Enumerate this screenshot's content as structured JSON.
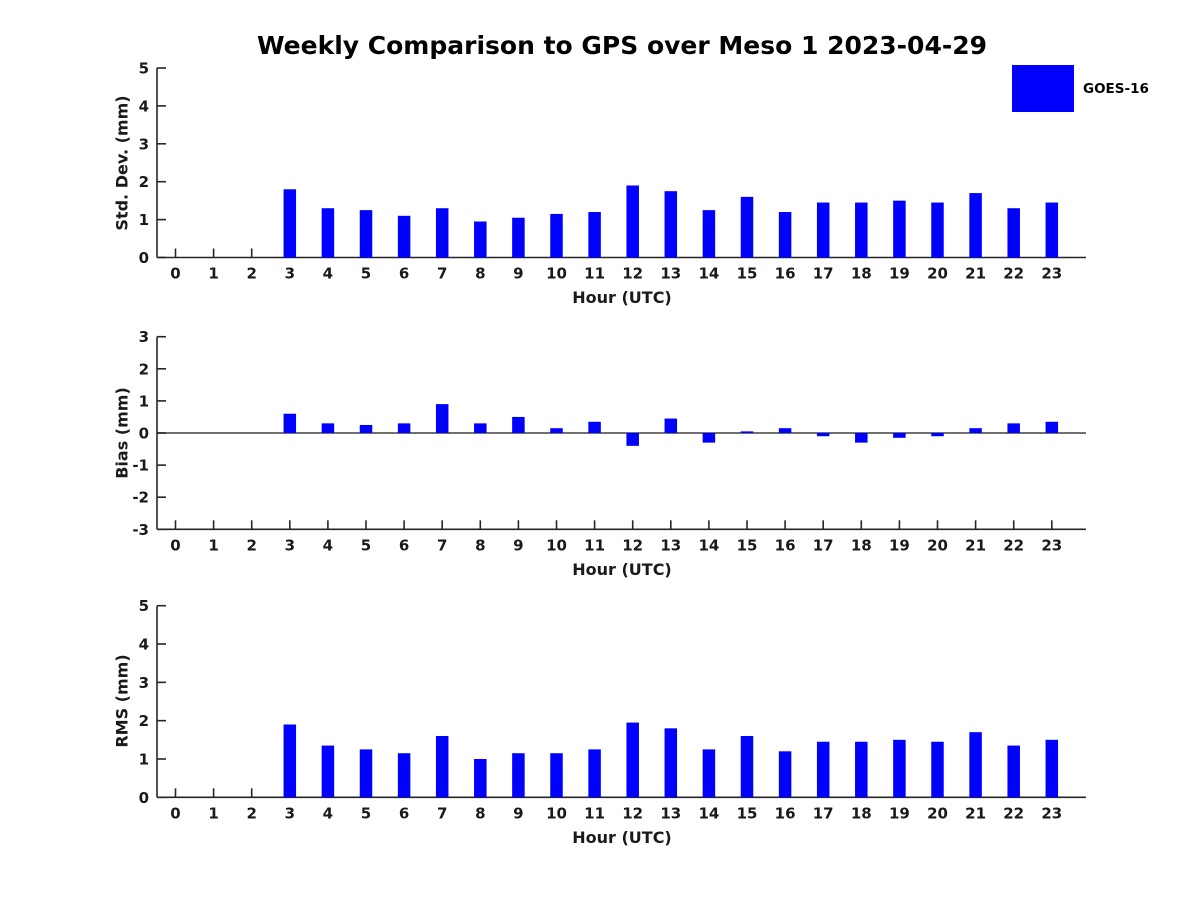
{
  "title": "Weekly Comparison to GPS over Meso 1 2023-04-29",
  "legend": {
    "label": "GOES-16",
    "color": "#0000ff",
    "position": "top-right"
  },
  "colors": {
    "bar": "#0000ff",
    "axis": "#262626",
    "text": "#1a1a1a",
    "background": "#ffffff"
  },
  "chart_data": [
    {
      "id": "std-dev",
      "type": "bar",
      "title": "",
      "ylabel": "Std. Dev. (mm)",
      "xlabel": "Hour (UTC)",
      "ylim": [
        0,
        5
      ],
      "yticks": [
        0,
        1,
        2,
        3,
        4,
        5
      ],
      "grid": false,
      "zero_line": false,
      "categories": [
        "0",
        "1",
        "2",
        "3",
        "4",
        "5",
        "6",
        "7",
        "8",
        "9",
        "10",
        "11",
        "12",
        "13",
        "14",
        "15",
        "16",
        "17",
        "18",
        "19",
        "20",
        "21",
        "22",
        "23"
      ],
      "values": [
        null,
        null,
        null,
        1.8,
        1.3,
        1.25,
        1.1,
        1.3,
        0.95,
        1.05,
        1.15,
        1.2,
        1.9,
        1.75,
        1.25,
        1.6,
        1.2,
        1.45,
        1.45,
        1.5,
        1.45,
        1.7,
        1.3,
        1.45
      ]
    },
    {
      "id": "bias",
      "type": "bar",
      "title": "",
      "ylabel": "Bias (mm)",
      "xlabel": "Hour (UTC)",
      "ylim": [
        -3,
        3
      ],
      "yticks": [
        -3,
        -2,
        -1,
        0,
        1,
        2,
        3
      ],
      "grid": false,
      "zero_line": true,
      "categories": [
        "0",
        "1",
        "2",
        "3",
        "4",
        "5",
        "6",
        "7",
        "8",
        "9",
        "10",
        "11",
        "12",
        "13",
        "14",
        "15",
        "16",
        "17",
        "18",
        "19",
        "20",
        "21",
        "22",
        "23"
      ],
      "values": [
        null,
        null,
        null,
        0.6,
        0.3,
        0.25,
        0.3,
        0.9,
        0.3,
        0.5,
        0.15,
        0.35,
        -0.4,
        0.45,
        -0.3,
        0.05,
        0.15,
        -0.1,
        -0.3,
        -0.15,
        -0.1,
        0.15,
        0.3,
        0.35
      ]
    },
    {
      "id": "rms",
      "type": "bar",
      "title": "",
      "ylabel": "RMS (mm)",
      "xlabel": "Hour (UTC)",
      "ylim": [
        0,
        5
      ],
      "yticks": [
        0,
        1,
        2,
        3,
        4,
        5
      ],
      "grid": false,
      "zero_line": false,
      "categories": [
        "0",
        "1",
        "2",
        "3",
        "4",
        "5",
        "6",
        "7",
        "8",
        "9",
        "10",
        "11",
        "12",
        "13",
        "14",
        "15",
        "16",
        "17",
        "18",
        "19",
        "20",
        "21",
        "22",
        "23"
      ],
      "values": [
        null,
        null,
        null,
        1.9,
        1.35,
        1.25,
        1.15,
        1.6,
        1.0,
        1.15,
        1.15,
        1.25,
        1.95,
        1.8,
        1.25,
        1.6,
        1.2,
        1.45,
        1.45,
        1.5,
        1.45,
        1.7,
        1.35,
        1.5
      ]
    }
  ]
}
